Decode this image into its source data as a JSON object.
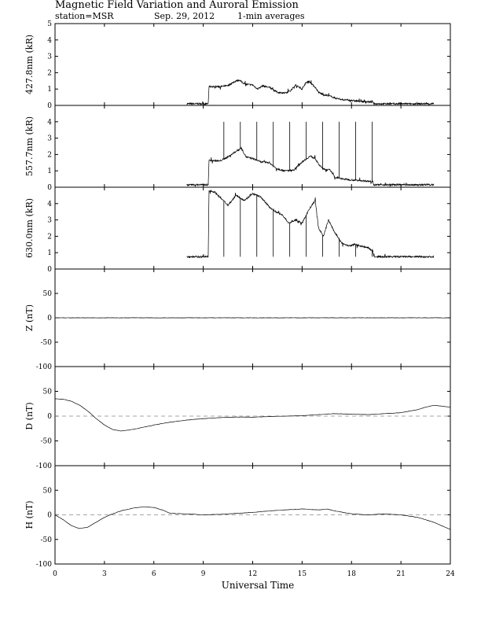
{
  "header": {
    "title": "Magnetic Field Variation and Auroral Emission",
    "station": "station=MSR",
    "date": "Sep. 29, 2012",
    "averaging": "1-min averages"
  },
  "colors": {
    "line": "#000000",
    "zero_line": "#888888"
  },
  "chart_data": [
    {
      "type": "line",
      "ylabel": "427.8nm (kR)",
      "ylim": [
        0,
        5
      ],
      "yticks": [
        0,
        1,
        2,
        3,
        4,
        5
      ],
      "zero_line": false,
      "series": [
        {
          "x": [
            8.0,
            9.0,
            9.3,
            9.35,
            10.0,
            10.5,
            10.8,
            11.0,
            11.2,
            11.5,
            12.0,
            12.3,
            12.6,
            13.0,
            13.5,
            14.0,
            14.3,
            14.6,
            15.0,
            15.2,
            15.4,
            15.8,
            16.0,
            16.3,
            16.6,
            17.0,
            17.5,
            18.0,
            18.5,
            19.3,
            19.35,
            20.0,
            21.0,
            22.0,
            23.0
          ],
          "y": [
            0.1,
            0.1,
            0.1,
            1.15,
            1.15,
            1.2,
            1.4,
            1.5,
            1.55,
            1.3,
            1.25,
            1.0,
            1.2,
            1.1,
            0.8,
            0.75,
            0.9,
            1.25,
            1.0,
            1.35,
            1.5,
            1.1,
            0.8,
            0.65,
            0.6,
            0.45,
            0.35,
            0.3,
            0.25,
            0.2,
            0.1,
            0.1,
            0.1,
            0.1,
            0.1
          ]
        }
      ]
    },
    {
      "type": "line",
      "ylabel": "557.7nm (kR)",
      "ylim": [
        0,
        5
      ],
      "yticks": [
        0,
        1,
        2,
        3,
        4
      ],
      "zero_line": false,
      "spikes": {
        "x": [
          10.25,
          11.25,
          12.25,
          13.25,
          14.25,
          15.25,
          16.25,
          17.25,
          18.25,
          19.25
        ],
        "top": 4.0
      },
      "series": [
        {
          "x": [
            8.0,
            9.0,
            9.3,
            9.35,
            10.0,
            10.5,
            11.0,
            11.3,
            11.6,
            12.0,
            12.5,
            13.0,
            13.5,
            14.0,
            14.5,
            15.0,
            15.5,
            15.8,
            16.0,
            16.3,
            16.7,
            17.0,
            17.5,
            18.0,
            19.3,
            19.35,
            20.0,
            21.0,
            22.0,
            23.0
          ],
          "y": [
            0.15,
            0.15,
            0.15,
            1.65,
            1.6,
            1.85,
            2.2,
            2.4,
            1.85,
            1.75,
            1.55,
            1.5,
            1.1,
            1.0,
            1.05,
            1.55,
            1.9,
            1.75,
            1.4,
            1.1,
            1.05,
            0.6,
            0.5,
            0.45,
            0.35,
            0.15,
            0.15,
            0.15,
            0.15,
            0.15
          ]
        }
      ]
    },
    {
      "type": "line",
      "ylabel": "630.0nm (kR)",
      "ylim": [
        0,
        5
      ],
      "yticks": [
        0,
        1,
        2,
        3,
        4
      ],
      "zero_line": false,
      "spikes": {
        "x": [
          10.25,
          11.25,
          12.25,
          13.25,
          14.25,
          15.25,
          16.25,
          17.25,
          18.25,
          19.25
        ],
        "top": 0.75
      },
      "series": [
        {
          "x": [
            8.0,
            9.0,
            9.3,
            9.35,
            9.7,
            10.0,
            10.5,
            11.0,
            11.5,
            12.0,
            12.5,
            13.0,
            13.4,
            13.8,
            14.2,
            14.6,
            15.0,
            15.4,
            15.8,
            16.0,
            16.3,
            16.6,
            17.0,
            17.4,
            17.8,
            18.2,
            18.6,
            19.0,
            19.3,
            19.35,
            20.0,
            21.0,
            22.0,
            23.0
          ],
          "y": [
            0.75,
            0.75,
            0.75,
            4.8,
            4.7,
            4.4,
            3.9,
            4.5,
            4.2,
            4.6,
            4.4,
            3.8,
            3.5,
            3.3,
            2.8,
            3.0,
            2.8,
            3.6,
            4.2,
            2.5,
            2.0,
            3.0,
            2.2,
            1.6,
            1.4,
            1.5,
            1.4,
            1.3,
            1.1,
            0.75,
            0.75,
            0.75,
            0.75,
            0.75
          ]
        }
      ]
    },
    {
      "type": "line",
      "ylabel": "Z (nT)",
      "ylim": [
        -100,
        100
      ],
      "yticks": [
        -100,
        -50,
        0,
        50
      ],
      "zero_line": true,
      "series": [
        {
          "x": [
            0,
            6,
            12,
            18,
            24
          ],
          "y": [
            0,
            0,
            0,
            0,
            0
          ]
        }
      ]
    },
    {
      "type": "line",
      "ylabel": "D (nT)",
      "ylim": [
        -100,
        100
      ],
      "yticks": [
        -100,
        -50,
        0,
        50
      ],
      "zero_line": true,
      "series": [
        {
          "x": [
            0,
            0.5,
            1.0,
            1.5,
            2.0,
            2.5,
            3.0,
            3.5,
            4.0,
            4.5,
            5.0,
            6.0,
            7.0,
            8.0,
            9.0,
            10.0,
            11.0,
            12.0,
            13.0,
            14.0,
            15.0,
            16.0,
            17.0,
            18.0,
            19.0,
            20.0,
            21.0,
            22.0,
            22.5,
            23.0,
            23.5,
            24.0
          ],
          "y": [
            35,
            34,
            30,
            22,
            10,
            -5,
            -18,
            -27,
            -30,
            -28,
            -25,
            -18,
            -12,
            -8,
            -5,
            -3,
            -2,
            -2,
            -1,
            0,
            1,
            3,
            5,
            4,
            3,
            5,
            7,
            13,
            18,
            22,
            20,
            18
          ]
        }
      ]
    },
    {
      "type": "line",
      "ylabel": "H (nT)",
      "ylim": [
        -100,
        100
      ],
      "yticks": [
        -100,
        -50,
        0,
        50
      ],
      "zero_line": true,
      "series": [
        {
          "x": [
            0,
            0.5,
            1.0,
            1.5,
            2.0,
            2.5,
            3.0,
            3.5,
            4.0,
            4.5,
            5.0,
            5.5,
            6.0,
            6.5,
            7.0,
            8.0,
            9.0,
            10.0,
            11.0,
            12.0,
            13.0,
            14.0,
            15.0,
            16.0,
            16.5,
            17.0,
            18.0,
            19.0,
            20.0,
            21.0,
            22.0,
            23.0,
            24.0
          ],
          "y": [
            0,
            -10,
            -22,
            -28,
            -25,
            -15,
            -5,
            2,
            8,
            12,
            15,
            16,
            15,
            10,
            3,
            2,
            0,
            1,
            3,
            5,
            8,
            10,
            12,
            10,
            12,
            8,
            2,
            0,
            2,
            0,
            -5,
            -15,
            -30
          ]
        }
      ]
    }
  ],
  "x_axis": {
    "xlim": [
      0,
      24
    ],
    "ticks": [
      0,
      3,
      6,
      9,
      12,
      15,
      18,
      21,
      24
    ],
    "label": "Universal Time"
  }
}
